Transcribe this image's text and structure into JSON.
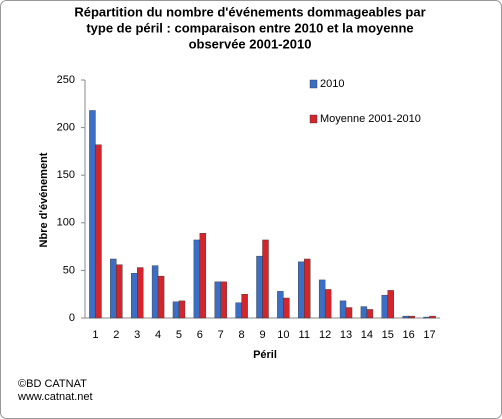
{
  "chart_data": {
    "type": "bar",
    "title": [
      "Répartition du nombre d'événements dommageables par",
      "type de péril : comparaison entre 2010  et la moyenne",
      "observée  2001-2010"
    ],
    "x_label": "Péril",
    "y_label": "Nbre d'événement",
    "categories": [
      "1",
      "2",
      "3",
      "4",
      "5",
      "6",
      "7",
      "8",
      "9",
      "10",
      "11",
      "12",
      "13",
      "14",
      "15",
      "16",
      "17"
    ],
    "series": [
      {
        "name": "2010",
        "color": "#3b6fc6",
        "values": [
          218,
          62,
          47,
          55,
          17,
          82,
          38,
          16,
          65,
          28,
          59,
          40,
          18,
          12,
          24,
          2,
          1
        ]
      },
      {
        "name": "Moyenne 2001-2010",
        "color": "#d3262c",
        "values": [
          182,
          56,
          53,
          44,
          18,
          89,
          38,
          25,
          82,
          21,
          62,
          30,
          11,
          9,
          29,
          2,
          2
        ]
      }
    ],
    "ylim": [
      0,
      250
    ],
    "yticks": [
      0,
      50,
      100,
      150,
      200,
      250
    ],
    "grid": false,
    "legend": "top-right",
    "footer": [
      "©BD CATNAT",
      "www.catnat.net"
    ]
  }
}
